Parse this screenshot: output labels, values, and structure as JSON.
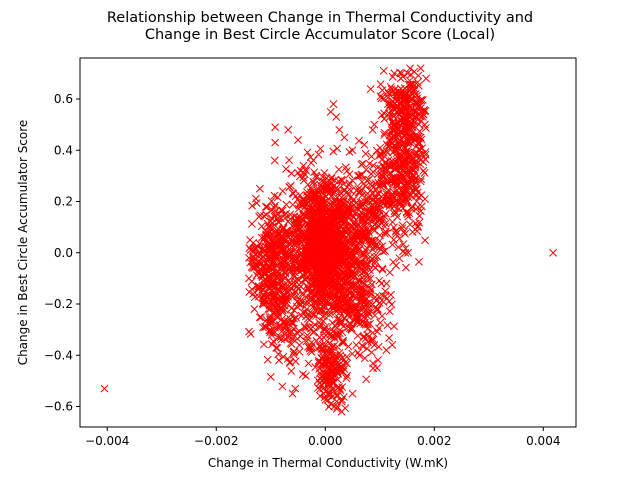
{
  "chart_data": {
    "type": "scatter",
    "title": "Relationship between Change in Thermal Conductivity and Change in Best Circle Accumulator Score (Local)",
    "title_lines": [
      "Relationship between Change in Thermal Conductivity and",
      "Change in Best Circle Accumulator Score (Local)"
    ],
    "xlabel": "Change in Thermal Conductivity (W.mK)",
    "ylabel": "Change in Best Circle Accumulator Score",
    "xlim": [
      -0.0045,
      0.0046
    ],
    "ylim": [
      -0.68,
      0.76
    ],
    "xticks": [
      -0.004,
      -0.002,
      0.0,
      0.002,
      0.004
    ],
    "xtick_labels": [
      "−0.004",
      "−0.002",
      "0.000",
      "0.002",
      "0.004"
    ],
    "yticks": [
      -0.6,
      -0.4,
      -0.2,
      0.0,
      0.2,
      0.4,
      0.6
    ],
    "ytick_labels": [
      "−0.6",
      "−0.4",
      "−0.2",
      "0.0",
      "0.2",
      "0.4",
      "0.6"
    ],
    "marker": "x",
    "marker_color": "#ff0000",
    "grid": false,
    "legend": "none",
    "series": [
      {
        "points": [
          [
            -0.00405,
            -0.53
          ],
          [
            0.00418,
            0.0
          ],
          [
            -0.00092,
            0.49
          ],
          [
            -0.00092,
            0.43
          ],
          [
            -0.00068,
            0.48
          ],
          [
            -0.00045,
            0.32
          ],
          [
            -0.00062,
            0.31
          ],
          [
            -0.00035,
            0.32
          ],
          [
            0.00112,
            -0.38
          ],
          [
            0.00152,
            0.0
          ],
          [
            0.00185,
            0.68
          ],
          [
            0.00175,
            0.72
          ],
          [
            0.0014,
            0.7
          ],
          [
            0.0016,
            0.66
          ],
          [
            0.00015,
            0.58
          ],
          [
            0.0002,
            0.53
          ],
          [
            0.00035,
            0.45
          ],
          [
            0.0001,
            0.55
          ],
          [
            -0.0005,
            0.44
          ],
          [
            0.0005,
            0.4
          ],
          [
            0.0006,
            0.3
          ],
          [
            -0.0012,
            0.25
          ],
          [
            -0.00138,
            0.05
          ],
          [
            -0.0014,
            -0.02
          ],
          [
            -0.0014,
            -0.1
          ],
          [
            -0.0013,
            -0.22
          ],
          [
            -0.00085,
            -0.42
          ],
          [
            -0.00065,
            -0.43
          ],
          [
            -0.0006,
            -0.55
          ],
          [
            -0.00055,
            -0.53
          ],
          [
            0.0001,
            -0.59
          ],
          [
            0.0003,
            -0.58
          ],
          [
            0.0005,
            -0.55
          ],
          [
            0.0009,
            -0.36
          ],
          [
            0.00095,
            -0.45
          ],
          [
            0.0003,
            -0.62
          ],
          [
            0.00022,
            -0.6
          ],
          [
            -0.0001,
            -0.47
          ],
          [
            0.0004,
            -0.48
          ],
          [
            0.0006,
            -0.39
          ],
          [
            -0.00082,
            -0.33
          ],
          [
            -0.00025,
            -0.35
          ],
          [
            0.0011,
            -0.15
          ],
          [
            0.0013,
            -0.05
          ],
          [
            0.0017,
            0.1
          ],
          [
            0.0018,
            0.32
          ],
          [
            0.00175,
            0.45
          ],
          [
            0.0015,
            0.52
          ],
          [
            0.0012,
            0.58
          ],
          [
            0.0009,
            0.5
          ]
        ]
      }
    ],
    "dense_regions": [
      {
        "cx": 0.0,
        "cy": 0.02,
        "sx": 0.00022,
        "sy": 0.13,
        "n": 900
      },
      {
        "cx": -0.00035,
        "cy": 0.05,
        "sx": 0.00028,
        "sy": 0.11,
        "n": 320
      },
      {
        "cx": -0.001,
        "cy": -0.07,
        "sx": 0.0002,
        "sy": 0.12,
        "n": 320
      },
      {
        "cx": 0.0004,
        "cy": -0.05,
        "sx": 0.00025,
        "sy": 0.14,
        "n": 260
      },
      {
        "cx": 0.0001,
        "cy": -0.45,
        "sx": 0.00013,
        "sy": 0.07,
        "n": 160
      },
      {
        "cx": 0.0008,
        "cy": 0.15,
        "sx": 0.00025,
        "sy": 0.1,
        "n": 220
      },
      {
        "cx": 0.00135,
        "cy": 0.3,
        "sx": 0.00025,
        "sy": 0.12,
        "n": 340
      },
      {
        "cx": 0.00145,
        "cy": 0.55,
        "sx": 0.00018,
        "sy": 0.08,
        "n": 220
      },
      {
        "cx": -0.0006,
        "cy": -0.25,
        "sx": 0.0003,
        "sy": 0.1,
        "n": 150
      },
      {
        "cx": 0.0007,
        "cy": -0.2,
        "sx": 0.00025,
        "sy": 0.1,
        "n": 140
      }
    ]
  }
}
